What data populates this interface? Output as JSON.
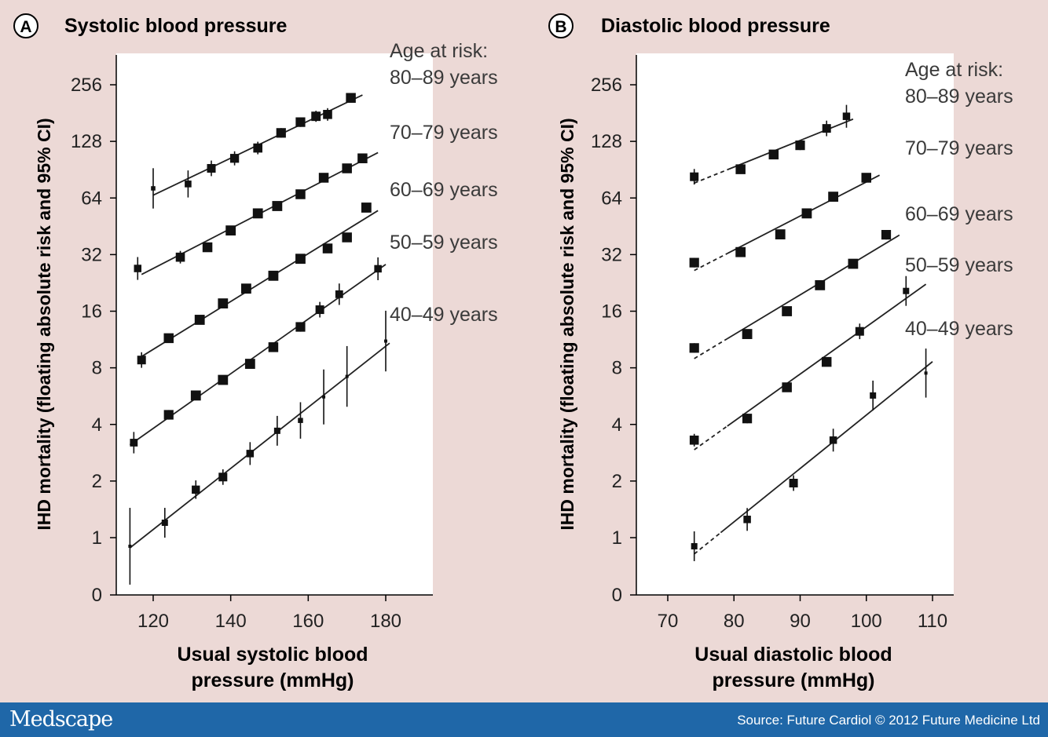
{
  "brand": "Medscape",
  "source": "Source: Future Cardiol © 2012 Future Medicine Ltd",
  "chart_data": [
    {
      "type": "scatter",
      "panel_label": "A",
      "title": "Systolic blood pressure",
      "xlabel_lines": [
        "Usual systolic blood",
        "pressure (mmHg)"
      ],
      "ylabel": "IHD mortality (floating absolute risk and 95% CI)",
      "yscale": "log2",
      "x_ticks": [
        120,
        140,
        160,
        180
      ],
      "y_ticks": [
        0,
        1,
        2,
        4,
        8,
        16,
        32,
        64,
        128,
        256
      ],
      "legend_title_lines": [
        "Age at risk:",
        "80–89 years"
      ],
      "series": [
        {
          "name": "80–89 years",
          "label": "80–89 years",
          "x": [
            120,
            129,
            135,
            141,
            147,
            153,
            158,
            162,
            165,
            171
          ],
          "y": [
            72,
            76,
            92,
            104,
            118,
            142,
            162,
            174,
            178,
            218
          ],
          "ci_factor": [
            1.28,
            1.18,
            1.1,
            1.09,
            1.08,
            1.06,
            1.06,
            1.07,
            1.08,
            1.05
          ],
          "line_x": [
            120,
            174
          ]
        },
        {
          "name": "70–79 years",
          "label": "70–79 years",
          "x": [
            116,
            127,
            134,
            140,
            147,
            152,
            158,
            164,
            170,
            174
          ],
          "y": [
            27,
            31,
            35,
            43,
            53,
            58,
            67,
            82,
            92,
            104
          ],
          "ci_factor": [
            1.15,
            1.08,
            1.05,
            1.04,
            1.04,
            1.04,
            1.05,
            1.05,
            1.05,
            1.05
          ],
          "line_x": [
            117,
            178
          ]
        },
        {
          "name": "60–69 years",
          "label": "60–69 years",
          "x": [
            117,
            124,
            132,
            138,
            144,
            151,
            158,
            165,
            170,
            175
          ],
          "y": [
            8.8,
            11.5,
            14.4,
            17.6,
            21.1,
            24.7,
            30.4,
            34.5,
            39.5,
            56.9
          ],
          "ci_factor": [
            1.1,
            1.05,
            1.04,
            1.04,
            1.04,
            1.04,
            1.04,
            1.05,
            1.05,
            1.04
          ],
          "line_x": [
            116,
            178
          ]
        },
        {
          "name": "50–59 years",
          "label": "50–59 years",
          "x": [
            115,
            124,
            131,
            138,
            145,
            151,
            158,
            163,
            168,
            178
          ],
          "y": [
            3.2,
            4.5,
            5.7,
            6.9,
            8.4,
            10.3,
            13.2,
            16.3,
            19.7,
            26.9
          ],
          "ci_factor": [
            1.14,
            1.06,
            1.04,
            1.04,
            1.04,
            1.05,
            1.06,
            1.1,
            1.14,
            1.15
          ],
          "line_x": [
            114,
            180
          ]
        },
        {
          "name": "40–49 years",
          "label": "40–49 years",
          "x": [
            114,
            123,
            131,
            138,
            145,
            152,
            158,
            164,
            170,
            180
          ],
          "y": [
            0.9,
            1.2,
            1.8,
            2.1,
            2.8,
            3.7,
            4.2,
            5.6,
            7.2,
            11.1
          ],
          "ci_factor": [
            1.6,
            1.2,
            1.12,
            1.1,
            1.15,
            1.2,
            1.25,
            1.4,
            1.45,
            1.45
          ],
          "line_x": [
            114,
            181
          ]
        }
      ]
    },
    {
      "type": "scatter",
      "panel_label": "B",
      "title": "Diastolic blood pressure",
      "xlabel_lines": [
        "Usual diastolic blood",
        "pressure (mmHg)"
      ],
      "ylabel": "IHD mortality (floating absolute risk and 95% CI)",
      "yscale": "log2",
      "x_ticks": [
        70,
        80,
        90,
        100,
        110
      ],
      "y_ticks": [
        0,
        1,
        2,
        4,
        8,
        16,
        32,
        64,
        128,
        256
      ],
      "legend_title_lines": [
        "Age at risk:",
        "80–89 years"
      ],
      "series": [
        {
          "name": "80–89 years",
          "label": "80–89 years",
          "x": [
            74,
            81,
            86,
            90,
            94,
            97
          ],
          "y": [
            83,
            91,
            109,
            122,
            150,
            174
          ],
          "ci_factor": [
            1.1,
            1.05,
            1.05,
            1.06,
            1.1,
            1.15
          ],
          "line_x": [
            79,
            98
          ],
          "dash_x": [
            74,
            79
          ]
        },
        {
          "name": "70–79 years",
          "label": "70–79 years",
          "x": [
            74,
            81,
            87,
            91,
            95,
            100
          ],
          "y": [
            29,
            33,
            41,
            53,
            65,
            82
          ],
          "ci_factor": [
            1.06,
            1.04,
            1.04,
            1.04,
            1.04,
            1.05
          ],
          "line_x": [
            79,
            102
          ],
          "dash_x": [
            74,
            79
          ]
        },
        {
          "name": "60–69 years",
          "label": "60–69 years",
          "x": [
            74,
            82,
            88,
            93,
            98,
            103
          ],
          "y": [
            10.2,
            12.1,
            16.0,
            22.0,
            28.6,
            40.8
          ],
          "ci_factor": [
            1.06,
            1.04,
            1.04,
            1.04,
            1.04,
            1.06
          ],
          "line_x": [
            79,
            105
          ],
          "dash_x": [
            74,
            79
          ]
        },
        {
          "name": "50–59 years",
          "label": "50–59 years",
          "x": [
            74,
            82,
            88,
            94,
            99,
            106
          ],
          "y": [
            3.3,
            4.3,
            6.3,
            8.6,
            12.5,
            20.5
          ],
          "ci_factor": [
            1.08,
            1.06,
            1.05,
            1.05,
            1.1,
            1.2
          ],
          "line_x": [
            79,
            109
          ],
          "dash_x": [
            74,
            79
          ]
        },
        {
          "name": "40–49 years",
          "label": "40–49 years",
          "x": [
            74,
            82,
            89,
            95,
            101,
            109
          ],
          "y": [
            0.9,
            1.25,
            1.95,
            3.3,
            5.7,
            7.5
          ],
          "ci_factor": [
            1.2,
            1.15,
            1.1,
            1.15,
            1.2,
            1.35
          ],
          "line_x": [
            78,
            110
          ],
          "dash_x": [
            74,
            78
          ]
        }
      ]
    }
  ]
}
